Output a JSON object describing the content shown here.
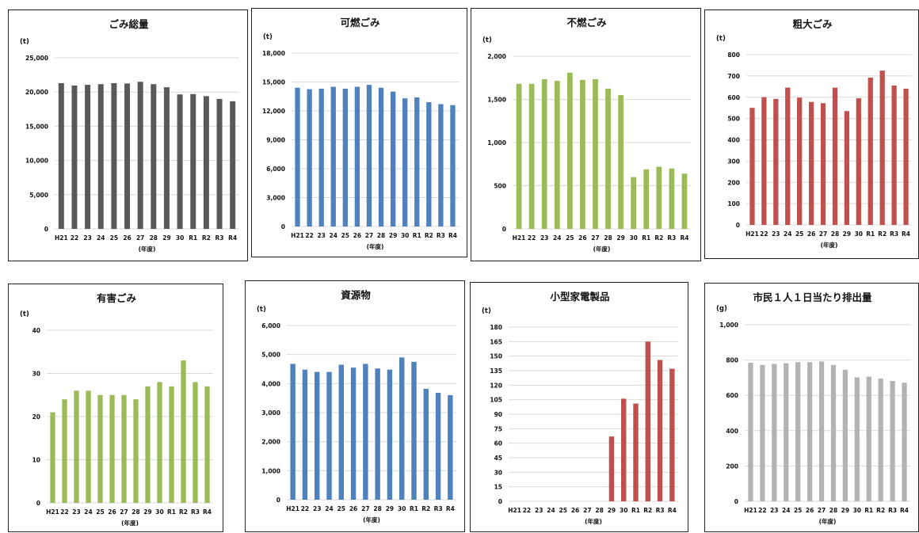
{
  "categories": [
    "H21",
    "22",
    "23",
    "24",
    "25",
    "26",
    "27",
    "28",
    "29",
    "30",
    "R1",
    "R2",
    "R3",
    "R4"
  ],
  "chart_data": [
    {
      "type": "bar",
      "title": "ごみ総量",
      "unit": "(t)",
      "xlabel": "(年度)",
      "ylim": [
        0,
        25000
      ],
      "yticks": [
        "0",
        "5,000",
        "10,000",
        "15,000",
        "20,000",
        "25,000"
      ],
      "color": "#595959",
      "values": [
        21300,
        20950,
        21050,
        21150,
        21300,
        21250,
        21500,
        21150,
        20700,
        19650,
        19700,
        19400,
        19000,
        18650
      ]
    },
    {
      "type": "bar",
      "title": "可燃ごみ",
      "unit": "(t)",
      "xlabel": "(年度)",
      "ylim": [
        0,
        18000
      ],
      "yticks": [
        "0",
        "3,000",
        "6,000",
        "9,000",
        "12,000",
        "15,000",
        "18,000"
      ],
      "color": "#4f81bd",
      "values": [
        14400,
        14250,
        14300,
        14500,
        14300,
        14500,
        14700,
        14400,
        14000,
        13300,
        13400,
        12900,
        12700,
        12600
      ]
    },
    {
      "type": "bar",
      "title": "不燃ごみ",
      "unit": "(t)",
      "xlabel": "(年度)",
      "ylim": [
        0,
        2000
      ],
      "yticks": [
        "0",
        "500",
        "1,000",
        "1,500",
        "2,000"
      ],
      "color": "#9bbb59",
      "values": [
        1680,
        1680,
        1735,
        1715,
        1810,
        1725,
        1735,
        1625,
        1550,
        600,
        690,
        720,
        700,
        640
      ]
    },
    {
      "type": "bar",
      "title": "粗大ごみ",
      "unit": "(t)",
      "xlabel": "(年度)",
      "ylim": [
        0,
        800
      ],
      "yticks": [
        "0",
        "100",
        "200",
        "300",
        "400",
        "500",
        "600",
        "700",
        "800"
      ],
      "color": "#c0504d",
      "values": [
        550,
        600,
        592,
        645,
        598,
        578,
        572,
        645,
        535,
        595,
        692,
        725,
        655,
        640
      ]
    },
    {
      "type": "bar",
      "title": "有害ごみ",
      "unit": "(t)",
      "xlabel": "(年度)",
      "ylim": [
        0,
        40
      ],
      "yticks": [
        "0",
        "10",
        "20",
        "30",
        "40"
      ],
      "color": "#9bbb59",
      "values": [
        21,
        24,
        26,
        26,
        25,
        25,
        25,
        24,
        27,
        28,
        27,
        33,
        28,
        27
      ]
    },
    {
      "type": "bar",
      "title": "資源物",
      "unit": "(t)",
      "xlabel": "(年度)",
      "ylim": [
        0,
        6000
      ],
      "yticks": [
        "0",
        "1,000",
        "2,000",
        "3,000",
        "4,000",
        "5,000",
        "6,000"
      ],
      "color": "#4f81bd",
      "values": [
        4680,
        4480,
        4400,
        4400,
        4650,
        4550,
        4680,
        4520,
        4480,
        4900,
        4750,
        3820,
        3680,
        3600
      ]
    },
    {
      "type": "bar",
      "title": "小型家電製品",
      "unit": "(t)",
      "xlabel": "(年度)",
      "ylim": [
        0,
        180
      ],
      "yticks": [
        "0",
        "15",
        "30",
        "45",
        "60",
        "75",
        "90",
        "105",
        "120",
        "135",
        "150",
        "165",
        "180"
      ],
      "color": "#c0504d",
      "values": [
        0,
        0,
        0,
        0,
        0,
        0,
        0,
        0,
        67,
        106,
        101,
        165,
        146,
        137
      ]
    },
    {
      "type": "bar",
      "title": "市民１人１日当たり排出量",
      "unit": "(g)",
      "xlabel": "(年度)",
      "ylim": [
        0,
        1000
      ],
      "yticks": [
        "0",
        "200",
        "400",
        "600",
        "800",
        "1,000"
      ],
      "color": "#b3b3b3",
      "values": [
        785,
        772,
        778,
        782,
        788,
        788,
        792,
        772,
        745,
        702,
        706,
        695,
        682,
        672
      ]
    }
  ]
}
